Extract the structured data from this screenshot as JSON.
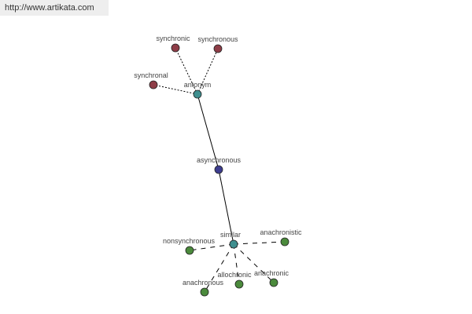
{
  "watermark": "http://www.artikata.com",
  "colors": {
    "center": "#3d3d8f",
    "relation": "#3f8f8f",
    "antonym_group": "#8e3d47",
    "similar_group": "#4b8a3c"
  },
  "nodes": [
    {
      "id": "asynchronous",
      "label": "asynchronous",
      "group": "center"
    },
    {
      "id": "antonym",
      "label": "antonym",
      "group": "relation"
    },
    {
      "id": "similar",
      "label": "similar",
      "group": "relation"
    },
    {
      "id": "synchronic",
      "label": "synchronic",
      "group": "antonym_group"
    },
    {
      "id": "synchronous",
      "label": "synchronous",
      "group": "antonym_group"
    },
    {
      "id": "synchronal",
      "label": "synchronal",
      "group": "antonym_group"
    },
    {
      "id": "nonsynchronous",
      "label": "nonsynchronous",
      "group": "similar_group"
    },
    {
      "id": "anachronistic",
      "label": "anachronistic",
      "group": "similar_group"
    },
    {
      "id": "anachronous",
      "label": "anachronous",
      "group": "similar_group"
    },
    {
      "id": "allochronic",
      "label": "allochronic",
      "group": "similar_group"
    },
    {
      "id": "anachronic",
      "label": "anachronic",
      "group": "similar_group"
    }
  ],
  "edges": [
    {
      "from": "asynchronous",
      "to": "antonym",
      "style": "solid"
    },
    {
      "from": "asynchronous",
      "to": "similar",
      "style": "solid"
    },
    {
      "from": "antonym",
      "to": "synchronic",
      "style": "dotted"
    },
    {
      "from": "antonym",
      "to": "synchronous",
      "style": "dotted"
    },
    {
      "from": "antonym",
      "to": "synchronal",
      "style": "dotted"
    },
    {
      "from": "similar",
      "to": "nonsynchronous",
      "style": "dashed"
    },
    {
      "from": "similar",
      "to": "anachronistic",
      "style": "dashed"
    },
    {
      "from": "similar",
      "to": "anachronous",
      "style": "dashed"
    },
    {
      "from": "similar",
      "to": "allochronic",
      "style": "dashed"
    },
    {
      "from": "similar",
      "to": "anachronic",
      "style": "dashed"
    }
  ]
}
